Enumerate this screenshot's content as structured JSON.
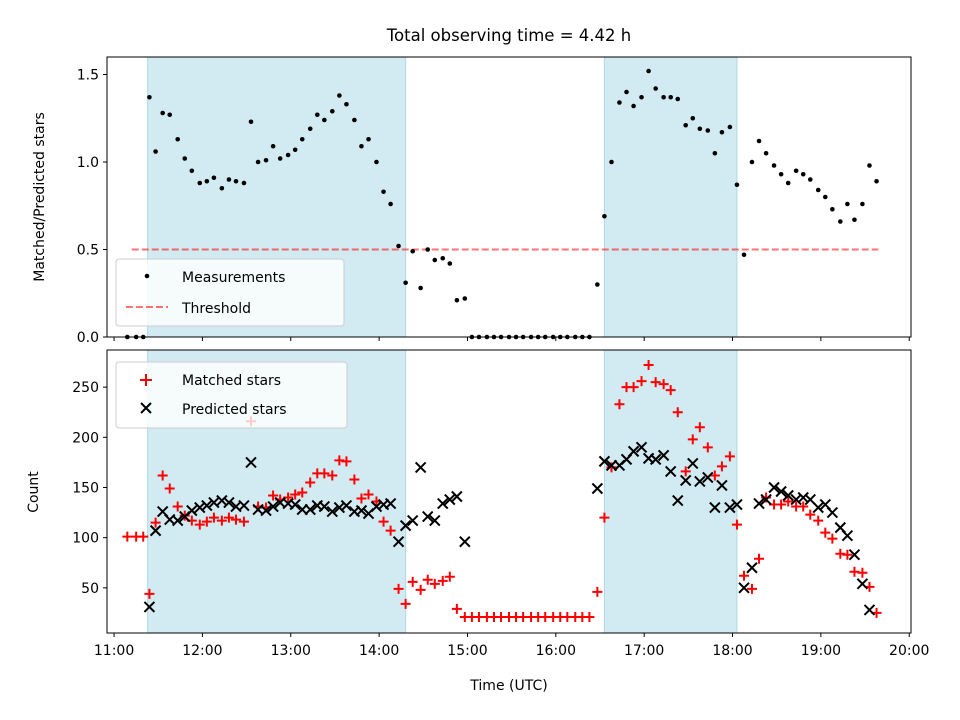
{
  "colors": {
    "shade": "#add8e6",
    "threshold": "#ff0000",
    "matched": "#ff0000",
    "predicted": "#000000",
    "measurement": "#000000"
  },
  "chart_data": [
    {
      "type": "scatter",
      "title": "Total observing time = 4.42 h",
      "ylabel": "Matched/Predicted stars",
      "xlabel": "",
      "x_unit": "hours UTC",
      "xlim": [
        10.92,
        20.02
      ],
      "ylim": [
        0,
        1.6
      ],
      "yticks": [
        0.0,
        0.5,
        1.0,
        1.5
      ],
      "ytick_labels": [
        "0.0",
        "0.5",
        "1.0",
        "1.5"
      ],
      "grid": false,
      "legend_position": "lower-left",
      "shaded_spans": [
        [
          11.38,
          14.3
        ],
        [
          16.55,
          18.05
        ]
      ],
      "legend": [
        {
          "label": "Measurements",
          "kind": "marker"
        },
        {
          "label": "Threshold",
          "kind": "dashed-line"
        }
      ],
      "threshold": {
        "name": "Threshold",
        "y": 0.5,
        "x_range": [
          11.2,
          19.65
        ]
      },
      "series": [
        {
          "name": "Measurements",
          "marker": "dot",
          "x": [
            11.15,
            11.25,
            11.33,
            11.4,
            11.47,
            11.55,
            11.63,
            11.72,
            11.8,
            11.88,
            11.97,
            12.05,
            12.13,
            12.22,
            12.3,
            12.38,
            12.47,
            12.55,
            12.63,
            12.72,
            12.8,
            12.88,
            12.97,
            13.05,
            13.13,
            13.22,
            13.3,
            13.38,
            13.47,
            13.55,
            13.63,
            13.72,
            13.8,
            13.88,
            13.97,
            14.05,
            14.13,
            14.22,
            14.3,
            14.38,
            14.47,
            14.55,
            14.63,
            14.72,
            14.8,
            14.88,
            14.97,
            15.05,
            15.13,
            15.22,
            15.3,
            15.38,
            15.47,
            15.55,
            15.63,
            15.72,
            15.8,
            15.88,
            15.97,
            16.05,
            16.13,
            16.22,
            16.3,
            16.38,
            16.47,
            16.55,
            16.63,
            16.72,
            16.8,
            16.88,
            16.97,
            17.05,
            17.13,
            17.22,
            17.3,
            17.38,
            17.47,
            17.55,
            17.63,
            17.72,
            17.8,
            17.88,
            17.97,
            18.05,
            18.13,
            18.22,
            18.3,
            18.38,
            18.47,
            18.55,
            18.63,
            18.72,
            18.8,
            18.88,
            18.97,
            19.05,
            19.13,
            19.22,
            19.3,
            19.38,
            19.47,
            19.55,
            19.63
          ],
          "y": [
            0.0,
            0.0,
            0.0,
            1.37,
            1.06,
            1.28,
            1.27,
            1.13,
            1.02,
            0.95,
            0.88,
            0.89,
            0.91,
            0.85,
            0.9,
            0.89,
            0.88,
            1.23,
            1.0,
            1.01,
            1.09,
            1.02,
            1.04,
            1.07,
            1.13,
            1.19,
            1.27,
            1.24,
            1.29,
            1.38,
            1.33,
            1.24,
            1.09,
            1.13,
            1.0,
            0.83,
            0.76,
            0.52,
            0.31,
            0.49,
            0.28,
            0.5,
            0.44,
            0.45,
            0.42,
            0.21,
            0.22,
            0.0,
            0.0,
            0.0,
            0.0,
            0.0,
            0.0,
            0.0,
            0.0,
            0.0,
            0.0,
            0.0,
            0.0,
            0.0,
            0.0,
            0.0,
            0.0,
            0.0,
            0.3,
            0.69,
            1.0,
            1.34,
            1.4,
            1.32,
            1.37,
            1.52,
            1.42,
            1.37,
            1.37,
            1.36,
            1.21,
            1.25,
            1.19,
            1.18,
            1.05,
            1.17,
            1.2,
            0.87,
            0.47,
            1.0,
            1.12,
            1.05,
            0.98,
            0.93,
            0.88,
            0.95,
            0.93,
            0.9,
            0.84,
            0.8,
            0.73,
            0.66,
            0.76,
            0.67,
            0.76,
            0.98,
            0.89
          ]
        }
      ]
    },
    {
      "type": "scatter",
      "title": "",
      "xlabel": "Time (UTC)",
      "ylabel": "Count",
      "x_unit": "hours UTC",
      "xlim": [
        10.92,
        20.02
      ],
      "ylim": [
        5,
        287
      ],
      "xticks": [
        11,
        12,
        13,
        14,
        15,
        16,
        17,
        18,
        19,
        20
      ],
      "xtick_labels": [
        "11:00",
        "12:00",
        "13:00",
        "14:00",
        "15:00",
        "16:00",
        "17:00",
        "18:00",
        "19:00",
        "20:00"
      ],
      "yticks": [
        50,
        100,
        150,
        200,
        250
      ],
      "ytick_labels": [
        "50",
        "100",
        "150",
        "200",
        "250"
      ],
      "grid": false,
      "legend_position": "top-left",
      "shaded_spans": [
        [
          11.38,
          14.3
        ],
        [
          16.55,
          18.05
        ]
      ],
      "legend": [
        {
          "label": "Matched stars",
          "kind": "plus"
        },
        {
          "label": "Predicted stars",
          "kind": "cross"
        }
      ],
      "series": [
        {
          "name": "Matched stars",
          "marker": "plus",
          "x": [
            11.15,
            11.25,
            11.33,
            11.4,
            11.47,
            11.55,
            11.63,
            11.72,
            11.8,
            11.88,
            11.97,
            12.05,
            12.13,
            12.22,
            12.3,
            12.38,
            12.47,
            12.55,
            12.63,
            12.72,
            12.8,
            12.88,
            12.97,
            13.05,
            13.13,
            13.22,
            13.3,
            13.38,
            13.47,
            13.55,
            13.63,
            13.72,
            13.8,
            13.88,
            13.97,
            14.05,
            14.13,
            14.22,
            14.3,
            14.38,
            14.47,
            14.55,
            14.63,
            14.72,
            14.8,
            14.88,
            14.97,
            15.05,
            15.13,
            15.22,
            15.3,
            15.38,
            15.47,
            15.55,
            15.63,
            15.72,
            15.8,
            15.88,
            15.97,
            16.05,
            16.13,
            16.22,
            16.3,
            16.38,
            16.47,
            16.55,
            16.63,
            16.72,
            16.8,
            16.88,
            16.97,
            17.05,
            17.13,
            17.22,
            17.3,
            17.38,
            17.47,
            17.55,
            17.63,
            17.72,
            17.8,
            17.88,
            17.97,
            18.05,
            18.13,
            18.22,
            18.3,
            18.38,
            18.47,
            18.55,
            18.63,
            18.72,
            18.8,
            18.88,
            18.97,
            19.05,
            19.13,
            19.22,
            19.3,
            19.38,
            19.47,
            19.55,
            19.63
          ],
          "y": [
            101,
            101,
            101,
            44,
            115,
            162,
            149,
            131,
            122,
            117,
            113,
            116,
            120,
            117,
            120,
            118,
            116,
            216,
            131,
            130,
            142,
            138,
            140,
            143,
            145,
            155,
            164,
            164,
            162,
            177,
            176,
            158,
            139,
            143,
            136,
            116,
            107,
            49,
            34,
            56,
            48,
            58,
            54,
            57,
            61,
            29,
            21,
            21,
            21,
            21,
            21,
            21,
            21,
            21,
            21,
            21,
            21,
            21,
            21,
            21,
            21,
            21,
            21,
            21,
            46,
            120,
            170,
            233,
            250,
            250,
            256,
            272,
            255,
            253,
            247,
            225,
            166,
            198,
            210,
            190,
            162,
            171,
            181,
            113,
            62,
            49,
            79,
            140,
            133,
            133,
            136,
            131,
            131,
            123,
            117,
            105,
            99,
            84,
            83,
            66,
            65,
            51,
            25
          ]
        },
        {
          "name": "Predicted stars",
          "marker": "cross",
          "x": [
            11.15,
            11.25,
            11.33,
            11.4,
            11.47,
            11.55,
            11.63,
            11.72,
            11.8,
            11.88,
            11.97,
            12.05,
            12.13,
            12.22,
            12.3,
            12.38,
            12.47,
            12.55,
            12.63,
            12.72,
            12.8,
            12.88,
            12.97,
            13.05,
            13.13,
            13.22,
            13.3,
            13.38,
            13.47,
            13.55,
            13.63,
            13.72,
            13.8,
            13.88,
            13.97,
            14.05,
            14.13,
            14.22,
            14.3,
            14.38,
            14.47,
            14.55,
            14.63,
            14.72,
            14.8,
            14.88,
            14.97,
            15.05,
            15.13,
            15.22,
            15.3,
            15.38,
            15.47,
            15.55,
            15.63,
            15.72,
            15.8,
            15.88,
            15.97,
            16.05,
            16.13,
            16.22,
            16.3,
            16.38,
            16.47,
            16.55,
            16.63,
            16.72,
            16.8,
            16.88,
            16.97,
            17.05,
            17.13,
            17.22,
            17.3,
            17.38,
            17.47,
            17.55,
            17.63,
            17.72,
            17.8,
            17.88,
            17.97,
            18.05,
            18.13,
            18.22,
            18.3,
            18.38,
            18.47,
            18.55,
            18.63,
            18.72,
            18.8,
            18.88,
            18.97,
            19.05,
            19.13,
            19.22,
            19.3,
            19.38,
            19.47,
            19.55,
            19.63
          ],
          "y": [
            null,
            null,
            null,
            31,
            107,
            126,
            118,
            117,
            121,
            127,
            130,
            132,
            135,
            137,
            135,
            131,
            132,
            175,
            128,
            127,
            131,
            135,
            134,
            133,
            128,
            128,
            132,
            131,
            126,
            130,
            132,
            126,
            127,
            124,
            131,
            133,
            134,
            96,
            112,
            117,
            170,
            121,
            117,
            134,
            138,
            141,
            96,
            null,
            null,
            null,
            null,
            null,
            null,
            null,
            null,
            null,
            null,
            null,
            null,
            null,
            null,
            null,
            null,
            null,
            149,
            176,
            172,
            172,
            178,
            186,
            190,
            179,
            178,
            182,
            166,
            137,
            157,
            174,
            156,
            160,
            130,
            152,
            130,
            133,
            50,
            70,
            134,
            138,
            150,
            146,
            142,
            138,
            140,
            138,
            130,
            133,
            125,
            110,
            102,
            83,
            54,
            28,
            null
          ]
        }
      ]
    }
  ]
}
